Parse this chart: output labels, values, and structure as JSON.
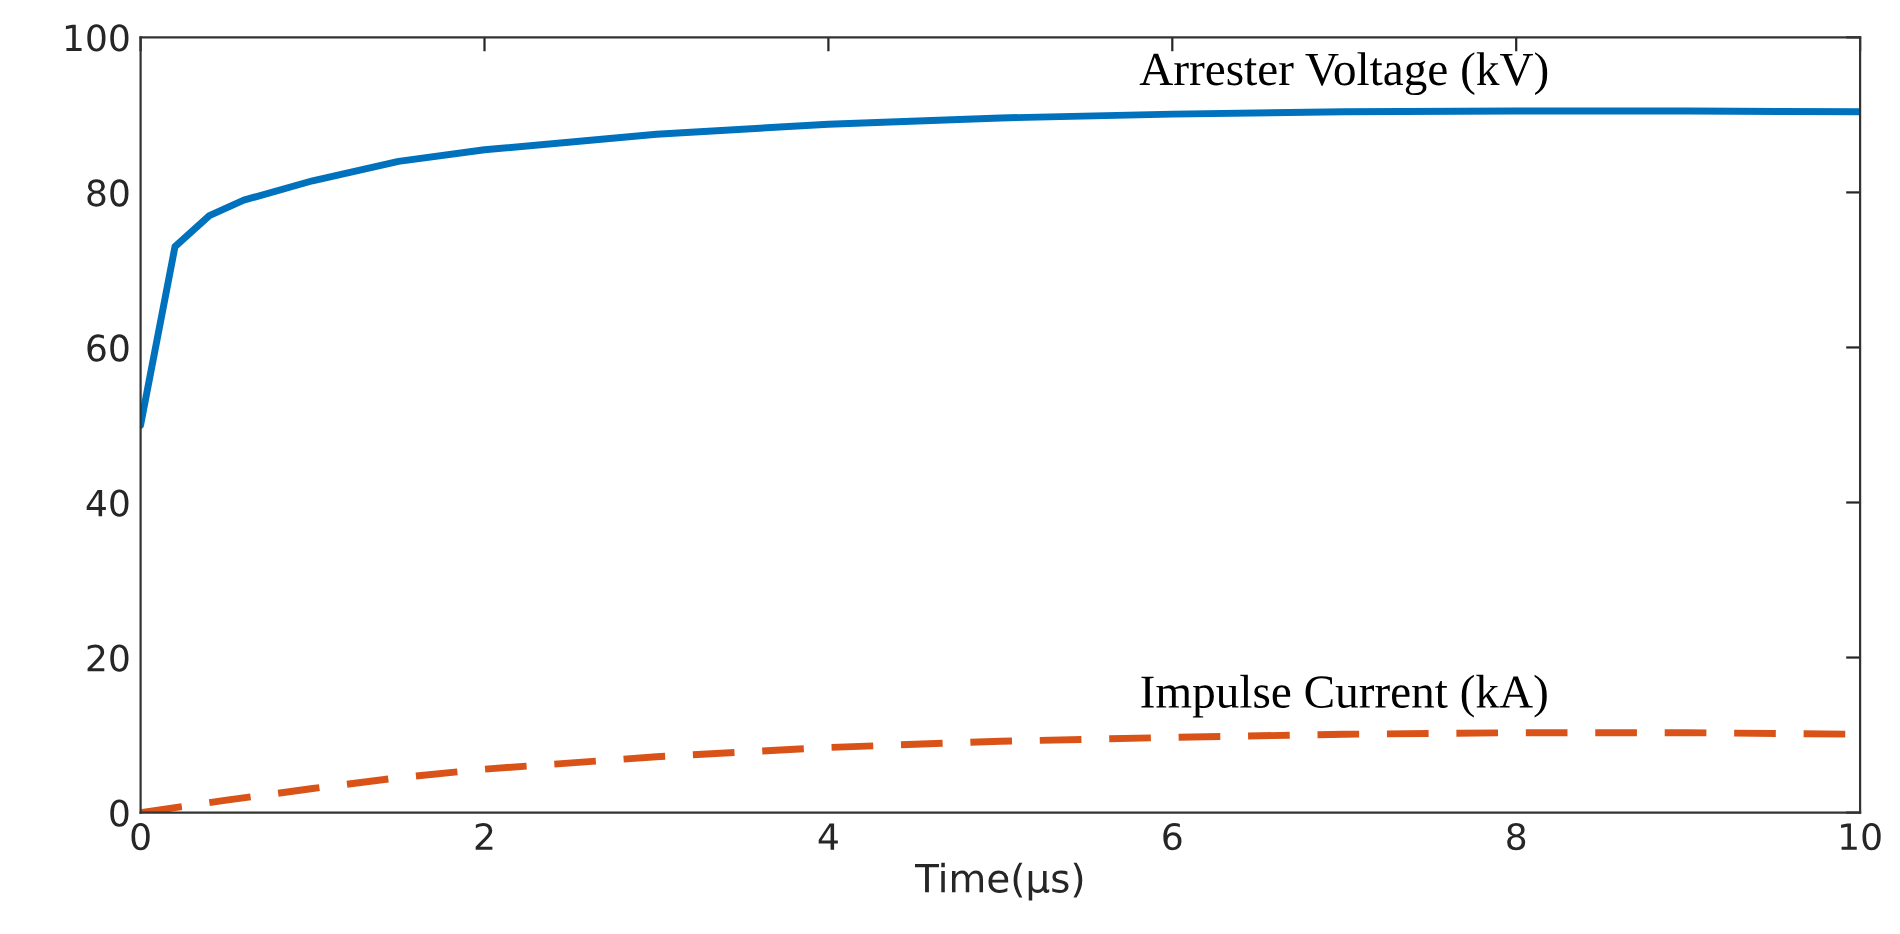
{
  "chart_data": {
    "type": "line",
    "xlabel": "Time(μs)",
    "xlim": [
      0,
      10
    ],
    "xticks": [
      0,
      2,
      4,
      6,
      8,
      10
    ],
    "ylim": [
      0,
      100
    ],
    "yticks": [
      0,
      20,
      40,
      60,
      80,
      100
    ],
    "grid": false,
    "legend": false,
    "series": [
      {
        "name": "Arrester Voltage (kV)",
        "color": "#0072bd",
        "line_style": "solid",
        "x": [
          0,
          0.2,
          0.4,
          0.6,
          1,
          1.5,
          2,
          3,
          4,
          5,
          6,
          7,
          8,
          9,
          10
        ],
        "values": [
          50,
          73,
          77,
          79,
          81.5,
          84,
          85.5,
          87.5,
          88.8,
          89.6,
          90.1,
          90.4,
          90.5,
          90.5,
          90.4
        ]
      },
      {
        "name": "Impulse Current (kA)",
        "color": "#d95319",
        "line_style": "dashed",
        "x": [
          0,
          0.5,
          1,
          1.5,
          2,
          3,
          4,
          5,
          6,
          7,
          8,
          9,
          10
        ],
        "values": [
          0,
          1.6,
          3.1,
          4.5,
          5.6,
          7.2,
          8.4,
          9.2,
          9.7,
          10.1,
          10.3,
          10.3,
          10.1
        ]
      }
    ]
  }
}
